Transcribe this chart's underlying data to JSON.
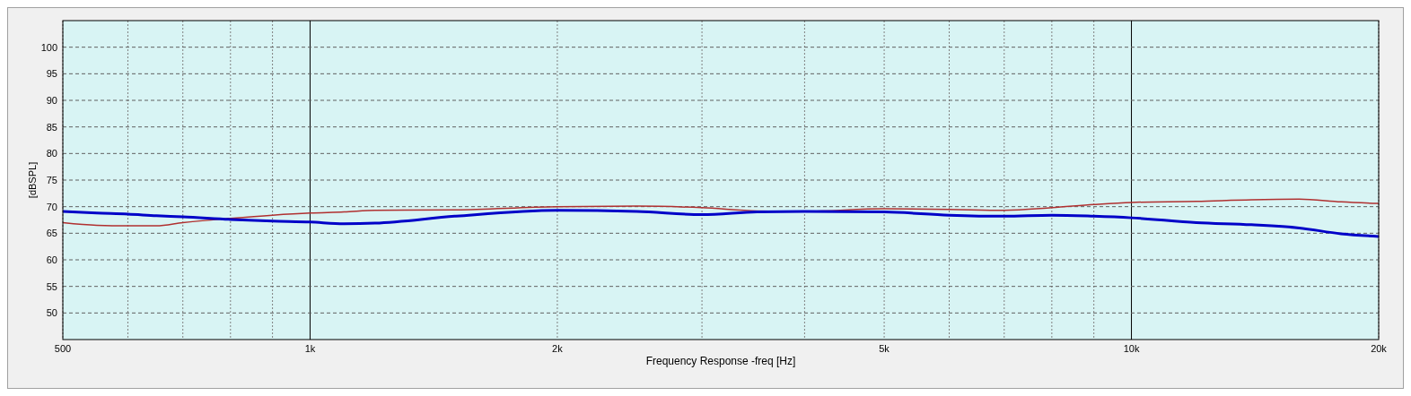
{
  "chart_data": {
    "type": "line",
    "xlabel": "Frequency Response -freq [Hz]",
    "ylabel": "[dBSPL]",
    "log": "x",
    "grid": true,
    "xlim": [
      500,
      20000
    ],
    "ylim": [
      45,
      105
    ],
    "xticks": [
      500,
      {
        "value": 600,
        "label": null
      },
      {
        "value": 700,
        "label": null
      },
      {
        "value": 800,
        "label": null
      },
      {
        "value": 900,
        "label": null
      },
      {
        "value": 1000,
        "label": "1k"
      },
      {
        "value": 2000,
        "label": "2k"
      },
      {
        "value": 3000,
        "label": null
      },
      {
        "value": 4000,
        "label": null
      },
      {
        "value": 5000,
        "label": "5k"
      },
      {
        "value": 6000,
        "label": null
      },
      {
        "value": 7000,
        "label": null
      },
      {
        "value": 8000,
        "label": null
      },
      {
        "value": 9000,
        "label": null
      },
      {
        "value": 10000,
        "label": "10k"
      },
      {
        "value": 20000,
        "label": "20k"
      }
    ],
    "yticks": [
      50,
      55,
      60,
      65,
      70,
      75,
      80,
      85,
      90,
      95,
      100
    ],
    "x": [
      500,
      550,
      600,
      650,
      700,
      800,
      900,
      1000,
      1100,
      1200,
      1500,
      2000,
      2500,
      3000,
      3500,
      4000,
      5000,
      6000,
      7000,
      8000,
      9000,
      10000,
      12000,
      14000,
      16000,
      18000,
      20000
    ],
    "series": [
      {
        "color": "#b03030",
        "values": [
          67.0,
          66.5,
          66.4,
          66.4,
          67.0,
          67.8,
          68.4,
          68.8,
          69.0,
          69.3,
          69.4,
          70.0,
          70.1,
          69.8,
          69.2,
          69.1,
          69.6,
          69.5,
          69.3,
          69.8,
          70.4,
          70.8,
          71.0,
          71.3,
          71.4,
          70.9,
          70.6
        ]
      },
      {
        "color": "#0000c8",
        "values": [
          69.1,
          68.8,
          68.6,
          68.3,
          68.1,
          67.6,
          67.3,
          67.1,
          66.8,
          66.9,
          68.2,
          69.3,
          69.1,
          68.5,
          69.0,
          69.1,
          69.0,
          68.4,
          68.2,
          68.4,
          68.2,
          67.9,
          67.0,
          66.6,
          66.0,
          64.9,
          64.4
        ]
      }
    ]
  }
}
